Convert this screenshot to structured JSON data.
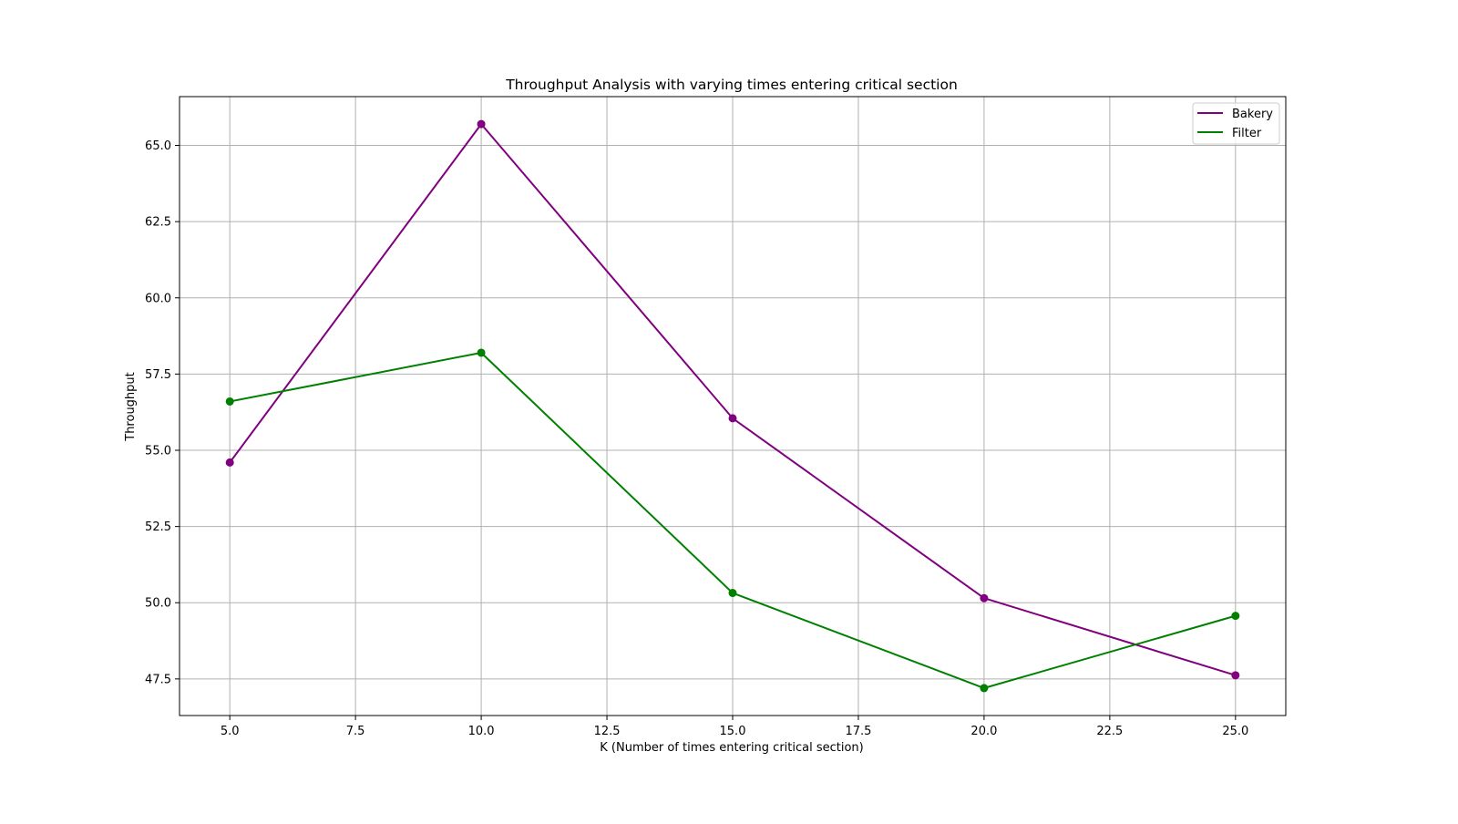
{
  "chart_data": {
    "type": "line",
    "title": "Throughput Analysis with varying times entering critical section",
    "xlabel": "K (Number of times entering critical section)",
    "ylabel": "Throughput",
    "xlim": [
      4.0,
      26.0
    ],
    "ylim": [
      46.3,
      66.6
    ],
    "xticks": [
      5.0,
      7.5,
      10.0,
      12.5,
      15.0,
      17.5,
      20.0,
      22.5,
      25.0
    ],
    "yticks": [
      47.5,
      50.0,
      52.5,
      55.0,
      57.5,
      60.0,
      62.5,
      65.0
    ],
    "grid": true,
    "legend_position": "top-right",
    "x": [
      5,
      10,
      15,
      20,
      25
    ],
    "series": [
      {
        "name": "Bakery",
        "color": "#800080",
        "values": [
          54.6,
          65.7,
          56.05,
          50.15,
          47.62
        ]
      },
      {
        "name": "Filter",
        "color": "#008000",
        "values": [
          56.6,
          58.2,
          50.32,
          47.2,
          49.57
        ]
      }
    ]
  }
}
